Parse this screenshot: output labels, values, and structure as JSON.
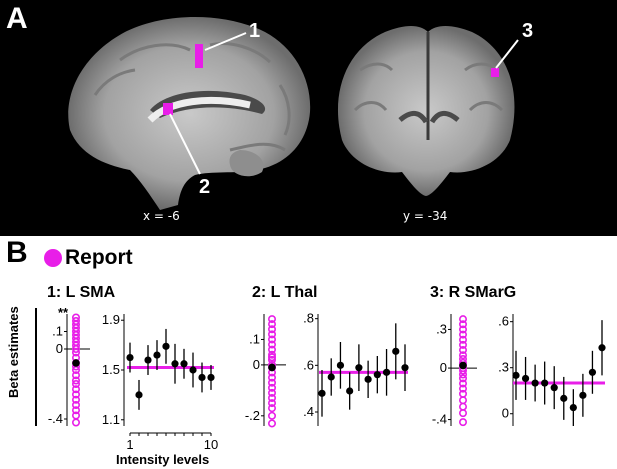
{
  "panel_a": {
    "label": "A",
    "slice_sagittal": "x = -6",
    "slice_coronal": "y = -34",
    "roi_numbers": [
      "1",
      "2",
      "3"
    ],
    "highlight_color": "#e81ee8"
  },
  "panel_b": {
    "label": "B",
    "legend": "Report",
    "ylabel": "Beta estimates",
    "xlabel": "Intensity levels",
    "significance": "**",
    "colors": {
      "subject_circles": "#e81ee8",
      "fit_line": "#e81ee8",
      "points": "#000000"
    }
  },
  "chart_data": [
    {
      "type": "scatter",
      "title": "1: L SMA",
      "subjects": {
        "ticks": [
          ".1",
          "0",
          "-.4"
        ],
        "tick_values": [
          0.1,
          0,
          -0.4
        ],
        "ylim": [
          -0.44,
          0.2
        ],
        "values": [
          0.18,
          0.16,
          0.14,
          0.12,
          0.1,
          0.08,
          0.06,
          0.04,
          0.02,
          0.0,
          -0.02,
          -0.05,
          -0.08,
          -0.1,
          -0.12,
          -0.15,
          -0.18,
          -0.2,
          -0.23,
          -0.26,
          -0.29,
          -0.32,
          -0.35,
          -0.38,
          -0.42
        ],
        "mean": -0.08
      },
      "levels": {
        "ticks": [
          "1.9",
          "1.5",
          "1.1"
        ],
        "tick_values": [
          1.9,
          1.5,
          1.1
        ],
        "ylim": [
          1.05,
          1.95
        ],
        "xticks": [
          "1",
          "10"
        ],
        "x": [
          1,
          2,
          3,
          4,
          5,
          6,
          7,
          8,
          9,
          10
        ],
        "y": [
          1.6,
          1.3,
          1.58,
          1.62,
          1.69,
          1.55,
          1.55,
          1.5,
          1.44,
          1.44
        ],
        "error": [
          0.12,
          0.12,
          0.12,
          0.12,
          0.14,
          0.16,
          0.12,
          0.14,
          0.12,
          0.1
        ],
        "fit": 1.52
      }
    },
    {
      "type": "scatter",
      "title": "2: L Thal",
      "subjects": {
        "ticks": [
          ".1",
          "0",
          "-.2"
        ],
        "tick_values": [
          0.1,
          0,
          -0.2
        ],
        "ylim": [
          -0.24,
          0.2
        ],
        "values": [
          0.18,
          0.16,
          0.14,
          0.12,
          0.1,
          0.08,
          0.06,
          0.04,
          0.03,
          0.02,
          0.0,
          -0.01,
          -0.03,
          -0.05,
          -0.07,
          -0.09,
          -0.11,
          -0.13,
          -0.15,
          -0.17,
          -0.2,
          -0.23
        ],
        "mean": -0.01
      },
      "levels": {
        "ticks": [
          ".8",
          ".6",
          ".4"
        ],
        "tick_values": [
          0.8,
          0.6,
          0.4
        ],
        "ylim": [
          0.34,
          0.82
        ],
        "x": [
          1,
          2,
          3,
          4,
          5,
          6,
          7,
          8,
          9,
          10
        ],
        "y": [
          0.48,
          0.55,
          0.6,
          0.49,
          0.59,
          0.54,
          0.56,
          0.57,
          0.66,
          0.59
        ],
        "error": [
          0.1,
          0.08,
          0.1,
          0.08,
          0.1,
          0.08,
          0.08,
          0.1,
          0.12,
          0.1
        ],
        "fit": 0.57
      }
    },
    {
      "type": "scatter",
      "title": "3: R SMarG",
      "subjects": {
        "ticks": [
          ".3",
          "0",
          "-.4"
        ],
        "tick_values": [
          0.3,
          0,
          -0.4
        ],
        "ylim": [
          -0.45,
          0.42
        ],
        "values": [
          0.38,
          0.34,
          0.3,
          0.26,
          0.22,
          0.18,
          0.14,
          0.1,
          0.07,
          0.04,
          0.02,
          0.0,
          -0.02,
          -0.05,
          -0.08,
          -0.12,
          -0.16,
          -0.2,
          -0.25,
          -0.3,
          -0.35,
          -0.42
        ],
        "mean": 0.02
      },
      "levels": {
        "ticks": [
          ".6",
          ".3",
          "0"
        ],
        "tick_values": [
          0.6,
          0.3,
          0
        ],
        "ylim": [
          -0.08,
          0.65
        ],
        "x": [
          1,
          2,
          3,
          4,
          5,
          6,
          7,
          8,
          9,
          10
        ],
        "y": [
          0.25,
          0.23,
          0.2,
          0.2,
          0.17,
          0.1,
          0.04,
          0.12,
          0.27,
          0.43
        ],
        "error": [
          0.16,
          0.14,
          0.12,
          0.14,
          0.14,
          0.14,
          0.12,
          0.14,
          0.14,
          0.18
        ],
        "fit": 0.2
      }
    }
  ]
}
